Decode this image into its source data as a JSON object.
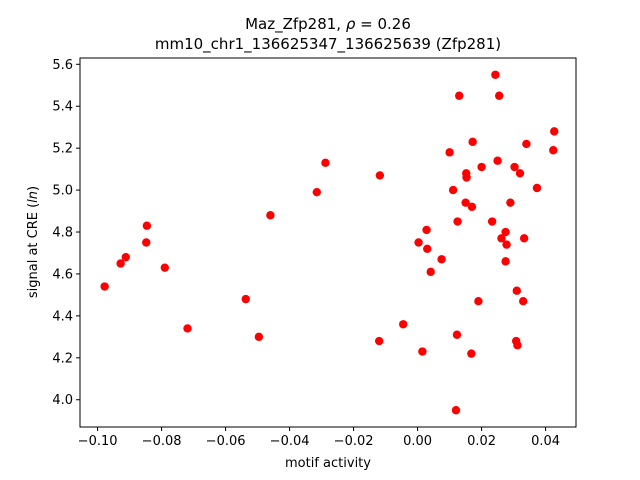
{
  "chart_data": {
    "type": "scatter",
    "title_line1": "Maz_Zfp281, ",
    "title_rho_symbol": "ρ",
    "title_rho_value": " = 0.26",
    "title_line2": "mm10_chr1_136625347_136625639 (Zfp281)",
    "xlabel": "motif activity",
    "ylabel_prefix": "signal at CRE (",
    "ylabel_italic": "ln",
    "ylabel_suffix": ")",
    "xlim": [
      -0.1055,
      0.0495
    ],
    "ylim": [
      3.87,
      5.63
    ],
    "xticks": [
      {
        "value": -0.1,
        "label": "−0.10"
      },
      {
        "value": -0.08,
        "label": "−0.08"
      },
      {
        "value": -0.06,
        "label": "−0.06"
      },
      {
        "value": -0.04,
        "label": "−0.04"
      },
      {
        "value": -0.02,
        "label": "−0.02"
      },
      {
        "value": 0.0,
        "label": "0.00"
      },
      {
        "value": 0.02,
        "label": "0.02"
      },
      {
        "value": 0.04,
        "label": "0.04"
      }
    ],
    "yticks": [
      {
        "value": 4.0,
        "label": "4.0"
      },
      {
        "value": 4.2,
        "label": "4.2"
      },
      {
        "value": 4.4,
        "label": "4.4"
      },
      {
        "value": 4.6,
        "label": "4.6"
      },
      {
        "value": 4.8,
        "label": "4.8"
      },
      {
        "value": 5.0,
        "label": "5.0"
      },
      {
        "value": 5.2,
        "label": "5.2"
      },
      {
        "value": 5.4,
        "label": "5.4"
      },
      {
        "value": 5.6,
        "label": "5.6"
      }
    ],
    "marker_color": "#ff0000",
    "grid": false,
    "points": [
      {
        "x": -0.0978,
        "y": 4.54
      },
      {
        "x": -0.0928,
        "y": 4.65
      },
      {
        "x": -0.0912,
        "y": 4.68
      },
      {
        "x": -0.0846,
        "y": 4.83
      },
      {
        "x": -0.0848,
        "y": 4.75
      },
      {
        "x": -0.079,
        "y": 4.63
      },
      {
        "x": -0.0719,
        "y": 4.34
      },
      {
        "x": -0.0537,
        "y": 4.48
      },
      {
        "x": -0.0496,
        "y": 4.3
      },
      {
        "x": -0.046,
        "y": 4.88
      },
      {
        "x": -0.0315,
        "y": 4.99
      },
      {
        "x": -0.0288,
        "y": 5.13
      },
      {
        "x": -0.0118,
        "y": 5.07
      },
      {
        "x": -0.012,
        "y": 4.28
      },
      {
        "x": -0.0045,
        "y": 4.36
      },
      {
        "x": 0.0003,
        "y": 4.75
      },
      {
        "x": 0.0015,
        "y": 4.23
      },
      {
        "x": 0.0028,
        "y": 4.81
      },
      {
        "x": 0.003,
        "y": 4.72
      },
      {
        "x": 0.0041,
        "y": 4.61
      },
      {
        "x": 0.0075,
        "y": 4.67
      },
      {
        "x": 0.01,
        "y": 5.18
      },
      {
        "x": 0.0111,
        "y": 5.0
      },
      {
        "x": 0.012,
        "y": 3.95
      },
      {
        "x": 0.0123,
        "y": 4.31
      },
      {
        "x": 0.0125,
        "y": 4.85
      },
      {
        "x": 0.013,
        "y": 5.45
      },
      {
        "x": 0.015,
        "y": 4.94
      },
      {
        "x": 0.0152,
        "y": 5.08
      },
      {
        "x": 0.0153,
        "y": 5.06
      },
      {
        "x": 0.0168,
        "y": 4.22
      },
      {
        "x": 0.017,
        "y": 4.92
      },
      {
        "x": 0.0172,
        "y": 5.23
      },
      {
        "x": 0.019,
        "y": 4.47
      },
      {
        "x": 0.02,
        "y": 5.11
      },
      {
        "x": 0.0233,
        "y": 4.85
      },
      {
        "x": 0.0243,
        "y": 5.55
      },
      {
        "x": 0.025,
        "y": 5.14
      },
      {
        "x": 0.0255,
        "y": 5.45
      },
      {
        "x": 0.0262,
        "y": 4.77
      },
      {
        "x": 0.0275,
        "y": 4.8
      },
      {
        "x": 0.0275,
        "y": 4.66
      },
      {
        "x": 0.0278,
        "y": 4.74
      },
      {
        "x": 0.029,
        "y": 4.94
      },
      {
        "x": 0.0303,
        "y": 5.11
      },
      {
        "x": 0.0308,
        "y": 4.28
      },
      {
        "x": 0.031,
        "y": 4.52
      },
      {
        "x": 0.0312,
        "y": 4.26
      },
      {
        "x": 0.032,
        "y": 5.08
      },
      {
        "x": 0.033,
        "y": 4.47
      },
      {
        "x": 0.0333,
        "y": 4.77
      },
      {
        "x": 0.034,
        "y": 5.22
      },
      {
        "x": 0.0373,
        "y": 5.01
      },
      {
        "x": 0.0424,
        "y": 5.19
      },
      {
        "x": 0.0427,
        "y": 5.28
      }
    ]
  }
}
